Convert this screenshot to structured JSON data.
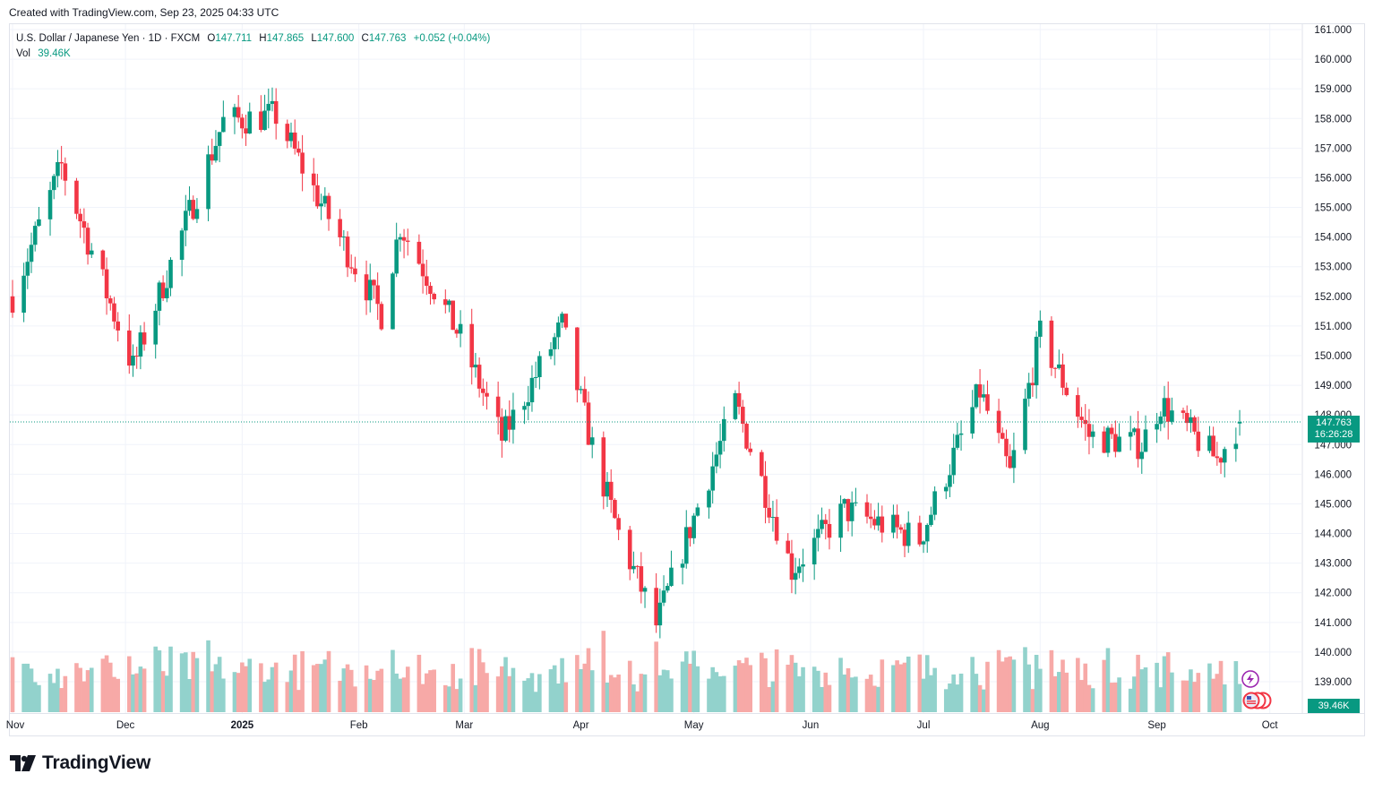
{
  "caption": "Created with TradingView.com, Sep 23, 2025 04:33 UTC",
  "legend": {
    "symbol": "U.S. Dollar / Japanese Yen · 1D · FXCM",
    "open_label": "O",
    "open": "147.711",
    "high_label": "H",
    "high": "147.865",
    "low_label": "L",
    "low": "147.600",
    "close_label": "C",
    "close": "147.763",
    "change": "+0.052 (+0.04%)",
    "vol_label": "Vol",
    "vol": "39.46K"
  },
  "price_badge": {
    "price": "147.763",
    "countdown": "16:26:28"
  },
  "vol_badge": "39.46K",
  "brand": "TradingView",
  "colors": {
    "up": "#089981",
    "down": "#f23645",
    "vol_up": "#92d2cc",
    "vol_down": "#f7a9a7",
    "grid": "#f0f3fa"
  },
  "chart_data": {
    "type": "candlestick",
    "symbol": "USD/JPY",
    "interval": "1D",
    "y_axis": {
      "min": 139.0,
      "max": 161.0,
      "step": 1.0,
      "ticks": [
        "161.000",
        "160.000",
        "159.000",
        "158.000",
        "157.000",
        "156.000",
        "155.000",
        "154.000",
        "153.000",
        "152.000",
        "151.000",
        "150.000",
        "149.000",
        "148.000",
        "147.000",
        "146.000",
        "145.000",
        "144.000",
        "143.000",
        "142.000",
        "141.000",
        "140.000",
        "139.000"
      ]
    },
    "x_axis": {
      "ticks": [
        "Nov",
        "Dec",
        "2025",
        "Feb",
        "Mar",
        "Apr",
        "May",
        "Jun",
        "Jul",
        "Aug",
        "Sep",
        "Oct"
      ],
      "bold": [
        "2025"
      ]
    },
    "last_price": 147.763,
    "key_points": [
      {
        "date": "2024-11-01",
        "close": 152.0
      },
      {
        "date": "2024-11-14",
        "close": 156.4
      },
      {
        "date": "2024-12-03",
        "close": 149.6
      },
      {
        "date": "2024-12-11",
        "close": 152.4
      },
      {
        "date": "2024-12-27",
        "close": 157.9
      },
      {
        "date": "2025-01-10",
        "close": 158.1
      },
      {
        "date": "2025-01-20",
        "close": 155.6
      },
      {
        "date": "2025-02-07",
        "close": 151.4
      },
      {
        "date": "2025-02-12",
        "close": 154.4
      },
      {
        "date": "2025-02-28",
        "close": 150.6
      },
      {
        "date": "2025-03-11",
        "close": 147.2
      },
      {
        "date": "2025-03-27",
        "close": 151.0
      },
      {
        "date": "2025-04-04",
        "close": 146.9
      },
      {
        "date": "2025-04-11",
        "close": 144.0
      },
      {
        "date": "2025-04-21",
        "close": 140.9
      },
      {
        "date": "2025-05-02",
        "close": 144.9
      },
      {
        "date": "2025-05-12",
        "close": 148.4
      },
      {
        "date": "2025-05-27",
        "close": 142.8
      },
      {
        "date": "2025-06-10",
        "close": 144.8
      },
      {
        "date": "2025-06-30",
        "close": 143.8
      },
      {
        "date": "2025-07-16",
        "close": 148.8
      },
      {
        "date": "2025-07-24",
        "close": 146.0
      },
      {
        "date": "2025-08-01",
        "close": 150.7
      },
      {
        "date": "2025-08-14",
        "close": 147.3
      },
      {
        "date": "2025-08-28",
        "close": 147.0
      },
      {
        "date": "2025-09-02",
        "close": 148.4
      },
      {
        "date": "2025-09-17",
        "close": 146.5
      },
      {
        "date": "2025-09-23",
        "close": 147.763
      }
    ],
    "volume": {
      "last": "39.46K"
    }
  }
}
